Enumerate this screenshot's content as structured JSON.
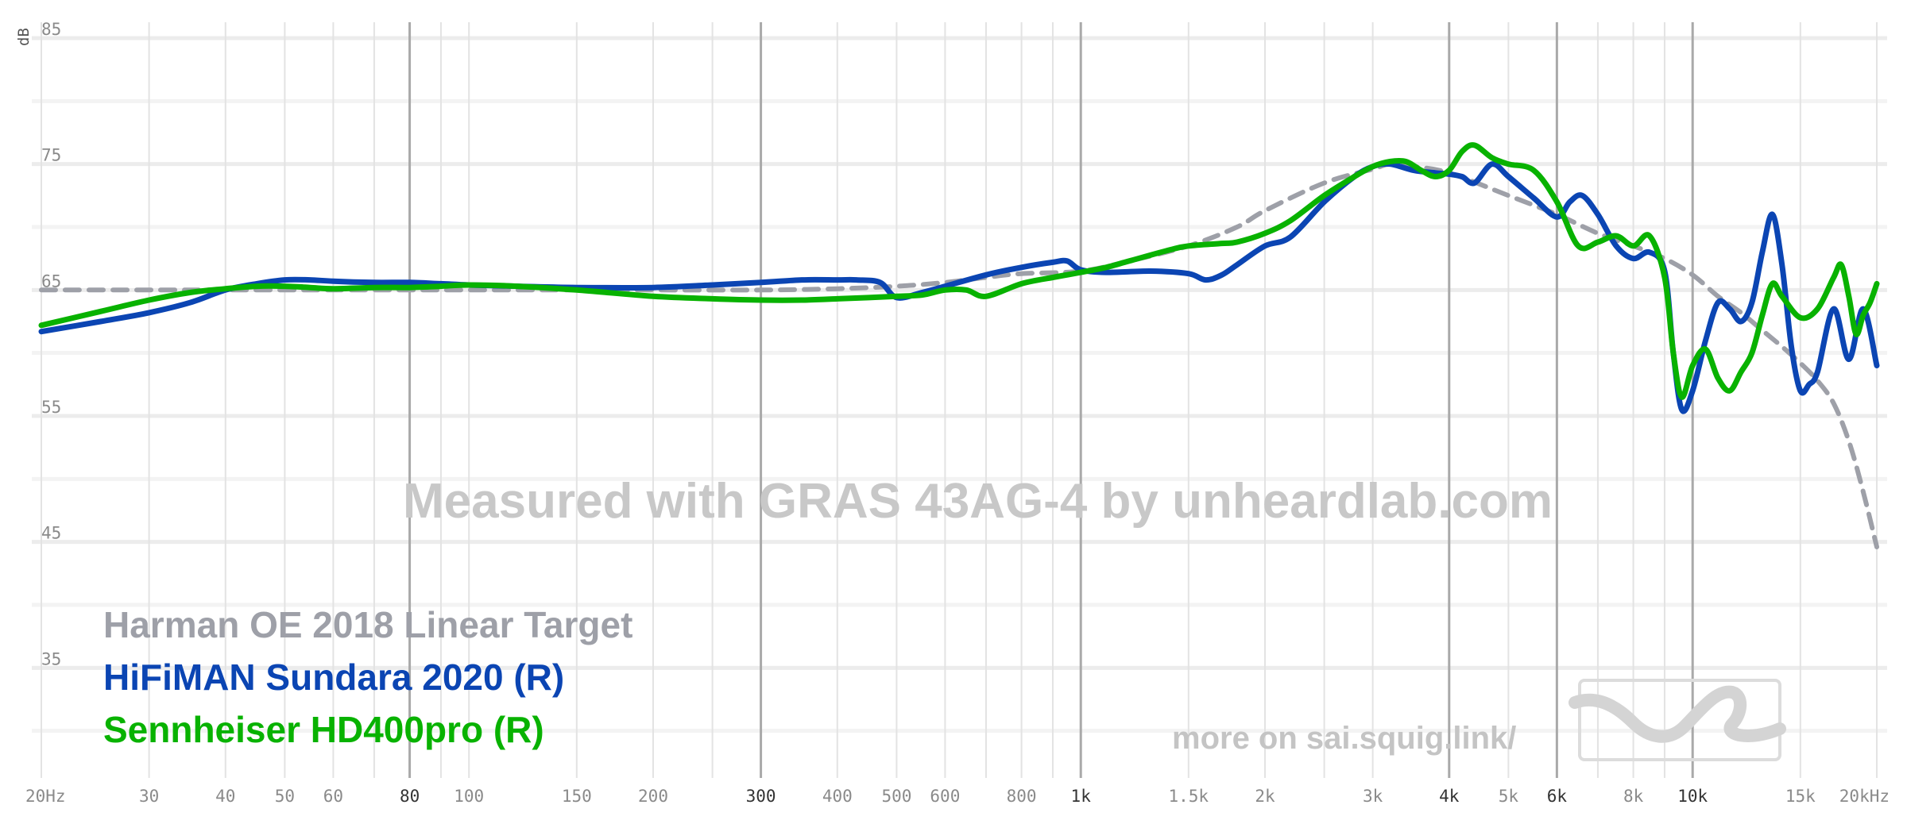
{
  "chart_data": {
    "type": "line",
    "ylabel": "dB",
    "xscale": "log",
    "xlim": [
      20,
      20000
    ],
    "ylim": [
      25,
      85
    ],
    "y_ticks": [
      {
        "value": 85,
        "label": "85"
      },
      {
        "value": 75,
        "label": "75"
      },
      {
        "value": 65,
        "label": "65"
      },
      {
        "value": 55,
        "label": "55"
      },
      {
        "value": 45,
        "label": "45"
      },
      {
        "value": 35,
        "label": "35"
      }
    ],
    "y_minor_grid": [
      80,
      70,
      60,
      50,
      40,
      30
    ],
    "x_ticks": [
      {
        "value": 20,
        "label": "20Hz"
      },
      {
        "value": 30,
        "label": "30"
      },
      {
        "value": 40,
        "label": "40"
      },
      {
        "value": 50,
        "label": "50"
      },
      {
        "value": 60,
        "label": "60"
      },
      {
        "value": 80,
        "label": "80",
        "strong": true
      },
      {
        "value": 100,
        "label": "100"
      },
      {
        "value": 150,
        "label": "150"
      },
      {
        "value": 200,
        "label": "200"
      },
      {
        "value": 300,
        "label": "300",
        "strong": true
      },
      {
        "value": 400,
        "label": "400"
      },
      {
        "value": 500,
        "label": "500"
      },
      {
        "value": 600,
        "label": "600"
      },
      {
        "value": 800,
        "label": "800"
      },
      {
        "value": 1000,
        "label": "1k",
        "strong": true
      },
      {
        "value": 1500,
        "label": "1.5k"
      },
      {
        "value": 2000,
        "label": "2k"
      },
      {
        "value": 3000,
        "label": "3k"
      },
      {
        "value": 4000,
        "label": "4k",
        "strong": true
      },
      {
        "value": 5000,
        "label": "5k"
      },
      {
        "value": 6000,
        "label": "6k",
        "strong": true
      },
      {
        "value": 8000,
        "label": "8k"
      },
      {
        "value": 10000,
        "label": "10k",
        "strong": true
      },
      {
        "value": 15000,
        "label": "15k"
      },
      {
        "value": 20000,
        "label": "20kHz"
      }
    ],
    "x_grid": [
      20,
      30,
      40,
      50,
      60,
      70,
      80,
      90,
      100,
      150,
      200,
      250,
      300,
      400,
      500,
      600,
      700,
      800,
      900,
      1000,
      1500,
      2000,
      2500,
      3000,
      4000,
      5000,
      6000,
      7000,
      8000,
      9000,
      10000,
      15000,
      20000
    ],
    "x_grid_strong": [
      80,
      300,
      1000,
      4000,
      6000,
      10000
    ],
    "series": [
      {
        "name": "Harman OE 2018 Linear Target",
        "color": "#9ea0a8",
        "style": "dashed",
        "x": [
          20,
          30,
          40,
          50,
          60,
          80,
          100,
          150,
          200,
          300,
          400,
          500,
          600,
          700,
          800,
          1000,
          1200,
          1500,
          1800,
          2000,
          2500,
          3000,
          3200,
          3500,
          4000,
          5000,
          6000,
          7000,
          8000,
          9000,
          10000,
          11000,
          12000,
          13000,
          14000,
          15000,
          16000,
          17000,
          18000,
          19000,
          20000
        ],
        "y": [
          65.0,
          65.0,
          65.0,
          65.0,
          65.0,
          65.0,
          65.0,
          65.0,
          65.0,
          65.0,
          65.1,
          65.3,
          65.6,
          66.0,
          66.3,
          66.5,
          67.3,
          68.5,
          70.0,
          71.3,
          73.5,
          74.6,
          75.0,
          74.8,
          74.3,
          72.5,
          71.0,
          69.5,
          68.5,
          67.5,
          66.2,
          64.5,
          63.2,
          61.8,
          60.5,
          59.2,
          57.8,
          56.0,
          53.0,
          49.0,
          44.6
        ]
      },
      {
        "name": "HiFiMAN Sundara 2020 (R)",
        "color": "#0b45b3",
        "style": "solid",
        "x": [
          20,
          25,
          30,
          35,
          40,
          45,
          50,
          55,
          60,
          70,
          80,
          90,
          100,
          120,
          150,
          200,
          250,
          300,
          350,
          400,
          430,
          470,
          500,
          550,
          600,
          700,
          800,
          900,
          950,
          1000,
          1100,
          1300,
          1500,
          1600,
          1700,
          1800,
          2000,
          2200,
          2500,
          2800,
          3000,
          3200,
          3500,
          3800,
          4000,
          4200,
          4400,
          4700,
          5000,
          5500,
          6000,
          6300,
          6600,
          7000,
          7500,
          8000,
          8500,
          9000,
          9300,
          9600,
          10000,
          10500,
          11000,
          11500,
          12000,
          12500,
          13000,
          13500,
          14000,
          14500,
          15000,
          15500,
          16000,
          17000,
          18000,
          19000,
          20000
        ],
        "y": [
          61.7,
          62.5,
          63.2,
          64.0,
          65.0,
          65.5,
          65.8,
          65.8,
          65.7,
          65.6,
          65.6,
          65.5,
          65.4,
          65.3,
          65.2,
          65.2,
          65.4,
          65.6,
          65.8,
          65.8,
          65.8,
          65.6,
          64.4,
          64.8,
          65.3,
          66.2,
          66.8,
          67.2,
          67.3,
          66.6,
          66.4,
          66.5,
          66.3,
          65.8,
          66.2,
          67.0,
          68.5,
          69.2,
          72.0,
          74.0,
          74.8,
          75.0,
          74.5,
          74.3,
          74.2,
          74.0,
          73.5,
          75.0,
          74.0,
          72.3,
          70.8,
          72.0,
          72.5,
          71.0,
          68.5,
          67.5,
          68.0,
          66.5,
          60.0,
          55.5,
          57.0,
          61.0,
          64.0,
          63.5,
          62.5,
          64.0,
          68.0,
          71.0,
          67.0,
          60.5,
          57.0,
          57.5,
          58.5,
          63.5,
          59.5,
          63.5,
          59.0
        ]
      },
      {
        "name": "Sennheiser HD400pro (R)",
        "color": "#08b200",
        "style": "solid",
        "x": [
          20,
          25,
          30,
          35,
          40,
          45,
          50,
          55,
          60,
          70,
          80,
          90,
          100,
          120,
          150,
          200,
          250,
          300,
          350,
          400,
          450,
          500,
          550,
          600,
          650,
          700,
          800,
          900,
          1000,
          1100,
          1200,
          1400,
          1500,
          1700,
          1800,
          2000,
          2200,
          2500,
          2800,
          3000,
          3200,
          3400,
          3600,
          3800,
          4000,
          4200,
          4400,
          4700,
          5000,
          5500,
          6000,
          6500,
          7000,
          7500,
          8000,
          8500,
          9000,
          9300,
          9600,
          10000,
          10500,
          11000,
          11500,
          12000,
          12500,
          13000,
          13500,
          14000,
          15000,
          16000,
          17000,
          17500,
          18000,
          18500,
          19000,
          19500,
          20000
        ],
        "y": [
          62.2,
          63.3,
          64.2,
          64.8,
          65.1,
          65.3,
          65.3,
          65.2,
          65.1,
          65.2,
          65.2,
          65.3,
          65.4,
          65.3,
          65.0,
          64.5,
          64.3,
          64.2,
          64.2,
          64.3,
          64.4,
          64.5,
          64.6,
          65.0,
          65.0,
          64.5,
          65.5,
          66.0,
          66.4,
          66.8,
          67.3,
          68.2,
          68.5,
          68.7,
          68.8,
          69.5,
          70.5,
          72.5,
          74.0,
          74.8,
          75.2,
          75.2,
          74.5,
          74.0,
          74.5,
          76.0,
          76.5,
          75.5,
          75.0,
          74.5,
          72.0,
          68.5,
          68.8,
          69.3,
          68.5,
          69.3,
          66.0,
          60.0,
          56.5,
          59.0,
          60.3,
          58.0,
          57.0,
          58.5,
          60.0,
          63.0,
          65.5,
          64.5,
          62.8,
          63.5,
          66.0,
          67.0,
          64.5,
          61.5,
          63.0,
          64.0,
          65.5
        ]
      }
    ],
    "legend_placement": "bottom-left",
    "annotations": {
      "watermark": "Measured with GRAS 43AG-4 by unheardlab.com",
      "more_on": "more on sai.squig.link/"
    }
  },
  "logo": {
    "name": "squiglink-logo",
    "color": "#d8d8d8"
  }
}
